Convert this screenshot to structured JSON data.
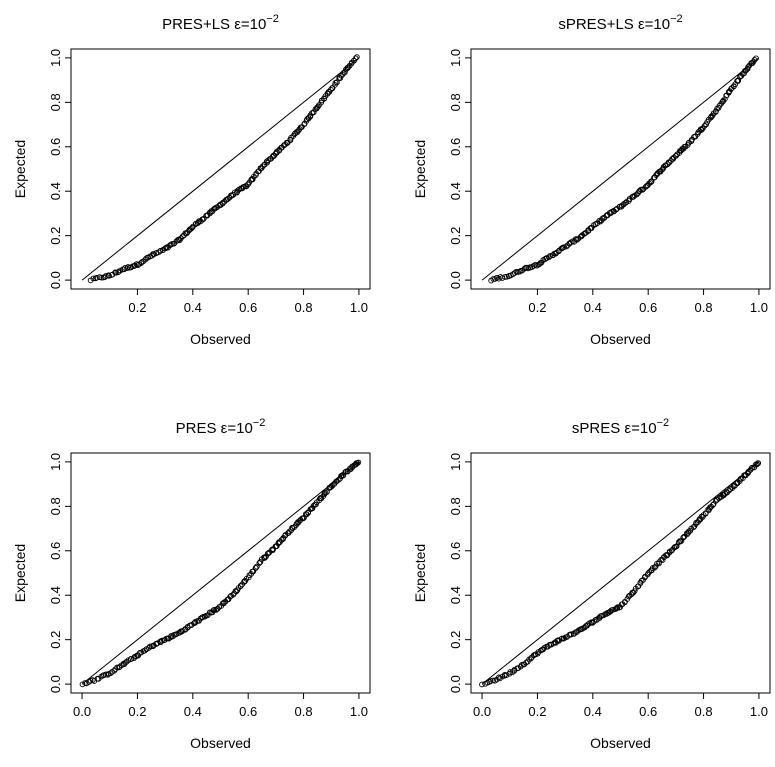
{
  "chart_data": [
    {
      "type": "scatter",
      "title": "PRES+LS",
      "title_epsilon": "ε=10",
      "title_exponent": "−2",
      "xlabel": "Observed",
      "ylabel": "Expected",
      "xlim": [
        0.0,
        1.0
      ],
      "ylim": [
        0.0,
        1.0
      ],
      "xticks": [
        "0.2",
        "0.4",
        "0.6",
        "0.8",
        "1.0"
      ],
      "yticks": [
        "0.0",
        "0.2",
        "0.4",
        "0.6",
        "0.8",
        "1.0"
      ],
      "reference_line": "y = x",
      "curve": [
        [
          0.03,
          0.0
        ],
        [
          0.06,
          0.01
        ],
        [
          0.1,
          0.02
        ],
        [
          0.15,
          0.05
        ],
        [
          0.2,
          0.07
        ],
        [
          0.25,
          0.11
        ],
        [
          0.3,
          0.14
        ],
        [
          0.35,
          0.18
        ],
        [
          0.4,
          0.24
        ],
        [
          0.45,
          0.29
        ],
        [
          0.5,
          0.34
        ],
        [
          0.55,
          0.39
        ],
        [
          0.6,
          0.43
        ],
        [
          0.65,
          0.51
        ],
        [
          0.7,
          0.57
        ],
        [
          0.75,
          0.63
        ],
        [
          0.8,
          0.7
        ],
        [
          0.85,
          0.78
        ],
        [
          0.9,
          0.86
        ],
        [
          0.95,
          0.94
        ],
        [
          0.99,
          1.0
        ]
      ]
    },
    {
      "type": "scatter",
      "title": "sPRES+LS",
      "title_epsilon": "ε=10",
      "title_exponent": "−2",
      "xlabel": "Observed",
      "ylabel": "Expected",
      "xlim": [
        0.0,
        1.0
      ],
      "ylim": [
        0.0,
        1.0
      ],
      "xticks": [
        "0.2",
        "0.4",
        "0.6",
        "0.8",
        "1.0"
      ],
      "yticks": [
        "0.0",
        "0.2",
        "0.4",
        "0.6",
        "0.8",
        "1.0"
      ],
      "reference_line": "y = x",
      "curve": [
        [
          0.03,
          0.0
        ],
        [
          0.06,
          0.01
        ],
        [
          0.1,
          0.02
        ],
        [
          0.15,
          0.05
        ],
        [
          0.2,
          0.07
        ],
        [
          0.25,
          0.11
        ],
        [
          0.3,
          0.15
        ],
        [
          0.35,
          0.19
        ],
        [
          0.4,
          0.24
        ],
        [
          0.45,
          0.29
        ],
        [
          0.5,
          0.33
        ],
        [
          0.55,
          0.38
        ],
        [
          0.6,
          0.43
        ],
        [
          0.65,
          0.5
        ],
        [
          0.7,
          0.56
        ],
        [
          0.75,
          0.62
        ],
        [
          0.8,
          0.69
        ],
        [
          0.85,
          0.77
        ],
        [
          0.9,
          0.86
        ],
        [
          0.95,
          0.94
        ],
        [
          0.99,
          1.0
        ]
      ]
    },
    {
      "type": "scatter",
      "title": "PRES",
      "title_epsilon": "ε=10",
      "title_exponent": "−2",
      "xlabel": "Observed",
      "ylabel": "Expected",
      "xlim": [
        0.0,
        1.0
      ],
      "ylim": [
        0.0,
        1.0
      ],
      "xticks": [
        "0.0",
        "0.2",
        "0.4",
        "0.6",
        "0.8",
        "1.0"
      ],
      "yticks": [
        "0.0",
        "0.2",
        "0.4",
        "0.6",
        "0.8",
        "1.0"
      ],
      "reference_line": "y = x",
      "curve": [
        [
          0.0,
          0.0
        ],
        [
          0.05,
          0.02
        ],
        [
          0.1,
          0.05
        ],
        [
          0.15,
          0.09
        ],
        [
          0.2,
          0.13
        ],
        [
          0.25,
          0.17
        ],
        [
          0.3,
          0.2
        ],
        [
          0.35,
          0.23
        ],
        [
          0.4,
          0.27
        ],
        [
          0.45,
          0.31
        ],
        [
          0.5,
          0.35
        ],
        [
          0.55,
          0.41
        ],
        [
          0.6,
          0.48
        ],
        [
          0.65,
          0.56
        ],
        [
          0.7,
          0.62
        ],
        [
          0.75,
          0.69
        ],
        [
          0.8,
          0.75
        ],
        [
          0.85,
          0.82
        ],
        [
          0.9,
          0.89
        ],
        [
          0.95,
          0.95
        ],
        [
          1.0,
          1.0
        ]
      ]
    },
    {
      "type": "scatter",
      "title": "sPRES",
      "title_epsilon": "ε=10",
      "title_exponent": "−2",
      "xlabel": "Observed",
      "ylabel": "Expected",
      "xlim": [
        0.0,
        1.0
      ],
      "ylim": [
        0.0,
        1.0
      ],
      "xticks": [
        "0.0",
        "0.2",
        "0.4",
        "0.6",
        "0.8",
        "1.0"
      ],
      "yticks": [
        "0.0",
        "0.2",
        "0.4",
        "0.6",
        "0.8",
        "1.0"
      ],
      "reference_line": "y = x",
      "curve": [
        [
          0.0,
          0.0
        ],
        [
          0.05,
          0.02
        ],
        [
          0.1,
          0.05
        ],
        [
          0.15,
          0.09
        ],
        [
          0.2,
          0.14
        ],
        [
          0.25,
          0.18
        ],
        [
          0.3,
          0.21
        ],
        [
          0.35,
          0.24
        ],
        [
          0.4,
          0.28
        ],
        [
          0.45,
          0.32
        ],
        [
          0.5,
          0.35
        ],
        [
          0.55,
          0.42
        ],
        [
          0.6,
          0.5
        ],
        [
          0.65,
          0.56
        ],
        [
          0.7,
          0.62
        ],
        [
          0.75,
          0.69
        ],
        [
          0.8,
          0.76
        ],
        [
          0.85,
          0.83
        ],
        [
          0.9,
          0.88
        ],
        [
          0.95,
          0.94
        ],
        [
          1.0,
          1.0
        ]
      ]
    }
  ]
}
